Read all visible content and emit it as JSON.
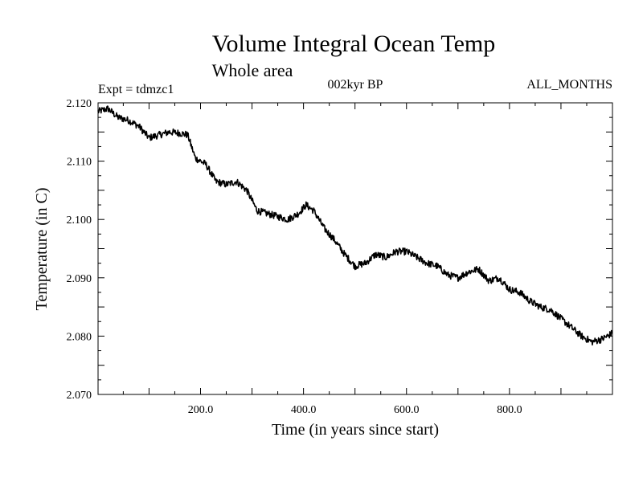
{
  "chart_data": {
    "type": "line",
    "title": "Volume Integral Ocean Temp",
    "subtitle": "Whole area",
    "experiment": "Expt = tdmzc1",
    "period": "002kyr BP",
    "months": "ALL_MONTHS",
    "xlabel": "Time (in years since start)",
    "ylabel": "Temperature (in C)",
    "xlim": [
      1,
      1000
    ],
    "ylim": [
      2.07,
      2.12
    ],
    "x_ticks": [
      200,
      400,
      600,
      800
    ],
    "x_tick_labels": [
      "200.0",
      "400.0",
      "600.0",
      "800.0"
    ],
    "y_ticks": [
      2.07,
      2.08,
      2.09,
      2.1,
      2.11,
      2.12
    ],
    "y_tick_labels": [
      "2.070",
      "2.080",
      "2.090",
      "2.100",
      "2.110",
      "2.120"
    ],
    "grid": false,
    "series": [
      {
        "name": "Volume Integral Ocean Temp",
        "color": "#000000",
        "x": [
          1,
          20,
          40,
          60,
          80,
          100,
          120,
          140,
          160,
          175,
          190,
          210,
          230,
          250,
          270,
          290,
          310,
          330,
          350,
          370,
          390,
          405,
          420,
          440,
          460,
          480,
          500,
          520,
          540,
          560,
          580,
          600,
          620,
          640,
          660,
          680,
          700,
          720,
          740,
          760,
          780,
          800,
          820,
          840,
          860,
          880,
          900,
          920,
          940,
          960,
          980,
          1000
        ],
        "values": [
          2.1185,
          2.119,
          2.1175,
          2.117,
          2.116,
          2.114,
          2.1145,
          2.115,
          2.1148,
          2.1145,
          2.1105,
          2.1095,
          2.1065,
          2.106,
          2.1065,
          2.105,
          2.1015,
          2.101,
          2.1005,
          2.1,
          2.101,
          2.1025,
          2.1015,
          2.0985,
          2.0965,
          2.094,
          2.092,
          2.0925,
          2.094,
          2.0935,
          2.0945,
          2.0945,
          2.0935,
          2.0925,
          2.092,
          2.0905,
          2.09,
          2.091,
          2.0915,
          2.0895,
          2.09,
          2.088,
          2.0875,
          2.086,
          2.085,
          2.0845,
          2.083,
          2.0815,
          2.08,
          2.079,
          2.0795,
          2.0805
        ]
      }
    ]
  }
}
